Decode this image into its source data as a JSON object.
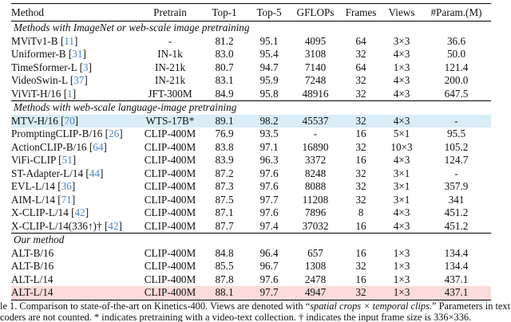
{
  "colors": {
    "blue_highlight": "#d9edf7",
    "pink_highlight": "#fcdcda",
    "citation_blue": "#4d87c5",
    "rule_black": "#000000"
  },
  "table": {
    "columns": [
      "Method",
      "Pretrain",
      "Top-1",
      "Top-5",
      "GFLOPs",
      "Frames",
      "Views",
      "#Param.(M)"
    ],
    "sections": [
      {
        "header": "Methods with ImageNet or web-scale image pretraining",
        "rows": [
          {
            "method": "MViTv1-B",
            "cite": "11",
            "pretrain": "-",
            "top1": "81.2",
            "top5": "95.1",
            "gflops": "4095",
            "frames": "64",
            "views": "3×3",
            "params": "36.6"
          },
          {
            "method": "Uniformer-B",
            "cite": "31",
            "pretrain": "IN-1k",
            "top1": "83.0",
            "top5": "95.4",
            "gflops": "3108",
            "frames": "32",
            "views": "4×3",
            "params": "50.0"
          },
          {
            "method": "TimeSformer-L",
            "cite": "3",
            "pretrain": "IN-21k",
            "top1": "80.7",
            "top5": "94.7",
            "gflops": "7140",
            "frames": "64",
            "views": "1×3",
            "params": "121.4"
          },
          {
            "method": "VideoSwin-L",
            "cite": "37",
            "pretrain": "IN-21k",
            "top1": "83.1",
            "top5": "95.9",
            "gflops": "7248",
            "frames": "32",
            "views": "4×3",
            "params": "200.0"
          },
          {
            "method": "ViViT-H/16",
            "cite": "1",
            "pretrain": "JFT-300M",
            "top1": "84.9",
            "top5": "95.8",
            "gflops": "48916",
            "frames": "32",
            "views": "4×3",
            "params": "647.5"
          }
        ]
      },
      {
        "header": "Methods with web-scale language-image pretraining",
        "rows": [
          {
            "method": "MTV-H/16",
            "cite": "70",
            "pretrain": "WTS-17B*",
            "top1": "89.1",
            "top5": "98.2",
            "gflops": "45537",
            "frames": "32",
            "views": "4×3",
            "params": "-",
            "highlight": "blue_highlight"
          },
          {
            "method": "PromptingCLIP-B/16",
            "cite": "26",
            "pretrain": "CLIP-400M",
            "top1": "76.9",
            "top5": "93.5",
            "gflops": "-",
            "frames": "16",
            "views": "5×1",
            "params": "95.5"
          },
          {
            "method": "ActionCLIP-B/16",
            "cite": "64",
            "pretrain": "CLIP-400M",
            "top1": "83.8",
            "top5": "97.1",
            "gflops": "16890",
            "frames": "32",
            "views": "10×3",
            "params": "105.2"
          },
          {
            "method": "ViFi-CLIP",
            "cite": "51",
            "pretrain": "CLIP-400M",
            "top1": "83.9",
            "top5": "96.3",
            "gflops": "3372",
            "frames": "16",
            "views": "4×3",
            "params": "124.7"
          },
          {
            "method": "ST-Adapter-L/14",
            "cite": "44",
            "pretrain": "CLIP-400M",
            "top1": "87.2",
            "top5": "97.6",
            "gflops": "8248",
            "frames": "32",
            "views": "3×1",
            "params": "-"
          },
          {
            "method": "EVL-L/14",
            "cite": "36",
            "pretrain": "CLIP-400M",
            "top1": "87.3",
            "top5": "97.6",
            "gflops": "8088",
            "frames": "32",
            "views": "3×1",
            "params": "357.9"
          },
          {
            "method": "AIM-L/14",
            "cite": "71",
            "pretrain": "CLIP-400M",
            "top1": "87.5",
            "top5": "97.7",
            "gflops": "11208",
            "frames": "32",
            "views": "3×1",
            "params": "341"
          },
          {
            "method": "X-CLIP-L/14",
            "cite": "42",
            "pretrain": "CLIP-400M",
            "top1": "87.1",
            "top5": "97.6",
            "gflops": "7896",
            "frames": "8",
            "views": "4×3",
            "params": "451.2"
          },
          {
            "method": "X-CLIP-L/14(336↑)†",
            "cite": "42",
            "pretrain": "CLIP-400M",
            "top1": "87.7",
            "top5": "97.4",
            "gflops": "37032",
            "frames": "16",
            "views": "4×3",
            "params": "451.2"
          }
        ]
      },
      {
        "header": "Our method",
        "rows": [
          {
            "method": "ALT-B/16",
            "cite": "",
            "pretrain": "CLIP-400M",
            "top1": "84.8",
            "top5": "96.4",
            "gflops": "657",
            "frames": "16",
            "views": "1×3",
            "params": "134.4"
          },
          {
            "method": "ALT-B/16",
            "cite": "",
            "pretrain": "CLIP-400M",
            "top1": "85.5",
            "top5": "96.7",
            "gflops": "1308",
            "frames": "32",
            "views": "1×3",
            "params": "134.4"
          },
          {
            "method": "ALT-L/14",
            "cite": "",
            "pretrain": "CLIP-400M",
            "top1": "87.8",
            "top5": "97.6",
            "gflops": "2478",
            "frames": "16",
            "views": "1×3",
            "params": "437.1"
          },
          {
            "method": "ALT-L/14",
            "cite": "",
            "pretrain": "CLIP-400M",
            "top1": "88.1",
            "top5": "97.7",
            "gflops": "4947",
            "frames": "32",
            "views": "1×3",
            "params": "437.1",
            "highlight": "pink_highlight"
          }
        ]
      }
    ]
  },
  "caption": {
    "line1_pre": "le 1.  Comparison to state-of-the-art on Kinetics-400.  Views are denoted with “",
    "line1_italic": "spatial crops × temporal clips.",
    "line1_post": "”  Parameters in text",
    "line2": "coders are not counted. * indicates pretraining with a video-text collection. † indicates the input frame size is 336×336."
  }
}
